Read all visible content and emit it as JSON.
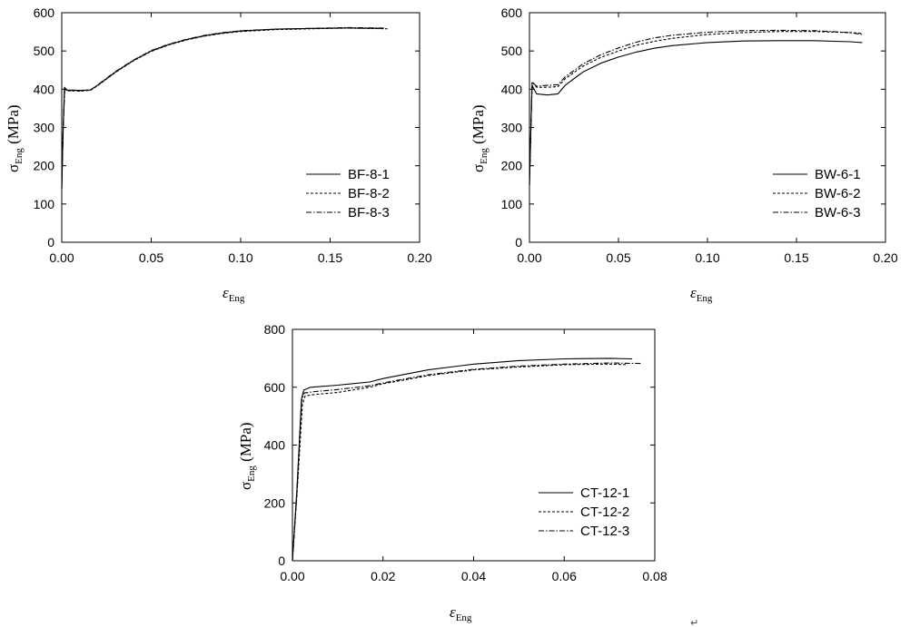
{
  "chart_data": [
    {
      "type": "line",
      "id": "bf",
      "xlabel": "ε",
      "xlabel_sub": "Eng",
      "ylabel": "σ",
      "ylabel_sub": "Eng",
      "ylabel_unit": " (MPa)",
      "xlim": [
        0,
        0.2
      ],
      "ylim": [
        0,
        600
      ],
      "xticks": [
        0,
        0.05,
        0.1,
        0.15,
        0.2
      ],
      "xtick_labels": [
        "0.00",
        "0.05",
        "0.10",
        "0.15",
        "0.20"
      ],
      "yticks": [
        0,
        100,
        200,
        300,
        400,
        500,
        600
      ],
      "ytick_labels": [
        "0",
        "100",
        "200",
        "300",
        "400",
        "500",
        "600"
      ],
      "legend_position": "bottom-right",
      "series": [
        {
          "name": "BF-8-1",
          "dash": "solid",
          "points": [
            [
              0,
              140
            ],
            [
              0.0008,
              300
            ],
            [
              0.0015,
              405
            ],
            [
              0.003,
              398
            ],
            [
              0.01,
              397
            ],
            [
              0.016,
              398
            ],
            [
              0.02,
              410
            ],
            [
              0.03,
              445
            ],
            [
              0.04,
              475
            ],
            [
              0.05,
              500
            ],
            [
              0.06,
              517
            ],
            [
              0.07,
              530
            ],
            [
              0.08,
              540
            ],
            [
              0.09,
              547
            ],
            [
              0.1,
              552
            ],
            [
              0.12,
              557
            ],
            [
              0.14,
              559
            ],
            [
              0.16,
              560
            ],
            [
              0.18,
              559
            ]
          ]
        },
        {
          "name": "BF-8-2",
          "dash": "dotted",
          "points": [
            [
              0,
              140
            ],
            [
              0.0008,
              300
            ],
            [
              0.0016,
              402
            ],
            [
              0.003,
              396
            ],
            [
              0.01,
              395
            ],
            [
              0.016,
              397
            ],
            [
              0.02,
              409
            ],
            [
              0.03,
              444
            ],
            [
              0.04,
              474
            ],
            [
              0.05,
              499
            ],
            [
              0.06,
              516
            ],
            [
              0.07,
              529
            ],
            [
              0.08,
              539
            ],
            [
              0.09,
              546
            ],
            [
              0.1,
              551
            ],
            [
              0.12,
              556
            ],
            [
              0.14,
              558
            ],
            [
              0.16,
              560
            ],
            [
              0.182,
              558
            ]
          ]
        },
        {
          "name": "BF-8-3",
          "dash": "dashdot",
          "points": [
            [
              0,
              140
            ],
            [
              0.0008,
              300
            ],
            [
              0.0017,
              400
            ],
            [
              0.003,
              397
            ],
            [
              0.01,
              396
            ],
            [
              0.016,
              398
            ],
            [
              0.02,
              411
            ],
            [
              0.03,
              446
            ],
            [
              0.04,
              476
            ],
            [
              0.05,
              501
            ],
            [
              0.06,
              518
            ],
            [
              0.07,
              531
            ],
            [
              0.08,
              541
            ],
            [
              0.09,
              548
            ],
            [
              0.1,
              553
            ],
            [
              0.12,
              557
            ],
            [
              0.14,
              559
            ],
            [
              0.16,
              561
            ],
            [
              0.18,
              560
            ]
          ]
        }
      ]
    },
    {
      "type": "line",
      "id": "bw",
      "xlabel": "ε",
      "xlabel_sub": "Eng",
      "ylabel": "σ",
      "ylabel_sub": "Eng",
      "ylabel_unit": " (MPa)",
      "xlim": [
        0,
        0.2
      ],
      "ylim": [
        0,
        600
      ],
      "xticks": [
        0,
        0.05,
        0.1,
        0.15,
        0.2
      ],
      "xtick_labels": [
        "0.00",
        "0.05",
        "0.10",
        "0.15",
        "0.20"
      ],
      "yticks": [
        0,
        100,
        200,
        300,
        400,
        500,
        600
      ],
      "ytick_labels": [
        "0",
        "100",
        "200",
        "300",
        "400",
        "500",
        "600"
      ],
      "legend_position": "bottom-right",
      "series": [
        {
          "name": "BW-6-1",
          "dash": "solid",
          "points": [
            [
              0,
              150
            ],
            [
              0.0008,
              300
            ],
            [
              0.0015,
              410
            ],
            [
              0.004,
              388
            ],
            [
              0.01,
              385
            ],
            [
              0.016,
              388
            ],
            [
              0.02,
              410
            ],
            [
              0.03,
              445
            ],
            [
              0.04,
              468
            ],
            [
              0.05,
              484
            ],
            [
              0.06,
              497
            ],
            [
              0.07,
              507
            ],
            [
              0.08,
              514
            ],
            [
              0.1,
              522
            ],
            [
              0.12,
              526
            ],
            [
              0.14,
              527
            ],
            [
              0.16,
              527
            ],
            [
              0.18,
              524
            ],
            [
              0.187,
              522
            ]
          ]
        },
        {
          "name": "BW-6-2",
          "dash": "dotted",
          "points": [
            [
              0,
              150
            ],
            [
              0.0008,
              300
            ],
            [
              0.0015,
              420
            ],
            [
              0.004,
              405
            ],
            [
              0.01,
              405
            ],
            [
              0.016,
              407
            ],
            [
              0.02,
              427
            ],
            [
              0.03,
              460
            ],
            [
              0.04,
              483
            ],
            [
              0.05,
              500
            ],
            [
              0.06,
              515
            ],
            [
              0.07,
              525
            ],
            [
              0.08,
              533
            ],
            [
              0.1,
              543
            ],
            [
              0.12,
              548
            ],
            [
              0.14,
              551
            ],
            [
              0.16,
              551
            ],
            [
              0.18,
              548
            ],
            [
              0.187,
              546
            ]
          ]
        },
        {
          "name": "BW-6-3",
          "dash": "dashdot",
          "points": [
            [
              0,
              150
            ],
            [
              0.0008,
              300
            ],
            [
              0.0015,
              418
            ],
            [
              0.004,
              408
            ],
            [
              0.01,
              410
            ],
            [
              0.016,
              412
            ],
            [
              0.02,
              432
            ],
            [
              0.03,
              466
            ],
            [
              0.04,
              490
            ],
            [
              0.05,
              508
            ],
            [
              0.06,
              523
            ],
            [
              0.07,
              534
            ],
            [
              0.08,
              541
            ],
            [
              0.1,
              549
            ],
            [
              0.12,
              553
            ],
            [
              0.14,
              554
            ],
            [
              0.16,
              553
            ],
            [
              0.18,
              548
            ],
            [
              0.187,
              543
            ]
          ]
        }
      ]
    },
    {
      "type": "line",
      "id": "ct",
      "xlabel": "ε",
      "xlabel_sub": "Eng",
      "ylabel": "σ",
      "ylabel_sub": "Eng",
      "ylabel_unit": " (MPa)",
      "xlim": [
        0,
        0.08
      ],
      "ylim": [
        0,
        800
      ],
      "xticks": [
        0,
        0.02,
        0.04,
        0.06,
        0.08
      ],
      "xtick_labels": [
        "0.00",
        "0.02",
        "0.04",
        "0.06",
        "0.08"
      ],
      "yticks": [
        0,
        200,
        400,
        600,
        800
      ],
      "ytick_labels": [
        "0",
        "200",
        "400",
        "600",
        "800"
      ],
      "legend_position": "bottom-right",
      "series": [
        {
          "name": "CT-12-1",
          "dash": "solid",
          "points": [
            [
              0,
              0
            ],
            [
              0.001,
              250
            ],
            [
              0.002,
              560
            ],
            [
              0.0025,
              590
            ],
            [
              0.004,
              600
            ],
            [
              0.01,
              607
            ],
            [
              0.017,
              618
            ],
            [
              0.02,
              630
            ],
            [
              0.03,
              660
            ],
            [
              0.04,
              680
            ],
            [
              0.05,
              692
            ],
            [
              0.06,
              698
            ],
            [
              0.07,
              700
            ],
            [
              0.075,
              698
            ]
          ]
        },
        {
          "name": "CT-12-2",
          "dash": "dotted",
          "points": [
            [
              0,
              0
            ],
            [
              0.001,
              230
            ],
            [
              0.0022,
              540
            ],
            [
              0.0028,
              570
            ],
            [
              0.005,
              575
            ],
            [
              0.01,
              582
            ],
            [
              0.017,
              600
            ],
            [
              0.02,
              612
            ],
            [
              0.03,
              640
            ],
            [
              0.04,
              660
            ],
            [
              0.05,
              670
            ],
            [
              0.06,
              678
            ],
            [
              0.07,
              680
            ],
            [
              0.074,
              678
            ]
          ]
        },
        {
          "name": "CT-12-3",
          "dash": "dashdot",
          "points": [
            [
              0,
              0
            ],
            [
              0.001,
              240
            ],
            [
              0.002,
              550
            ],
            [
              0.0026,
              580
            ],
            [
              0.005,
              585
            ],
            [
              0.01,
              592
            ],
            [
              0.017,
              605
            ],
            [
              0.02,
              615
            ],
            [
              0.03,
              643
            ],
            [
              0.04,
              662
            ],
            [
              0.05,
              673
            ],
            [
              0.06,
              680
            ],
            [
              0.07,
              684
            ],
            [
              0.077,
              682
            ]
          ]
        }
      ]
    }
  ],
  "decorations": {
    "return_mark": "↵"
  }
}
